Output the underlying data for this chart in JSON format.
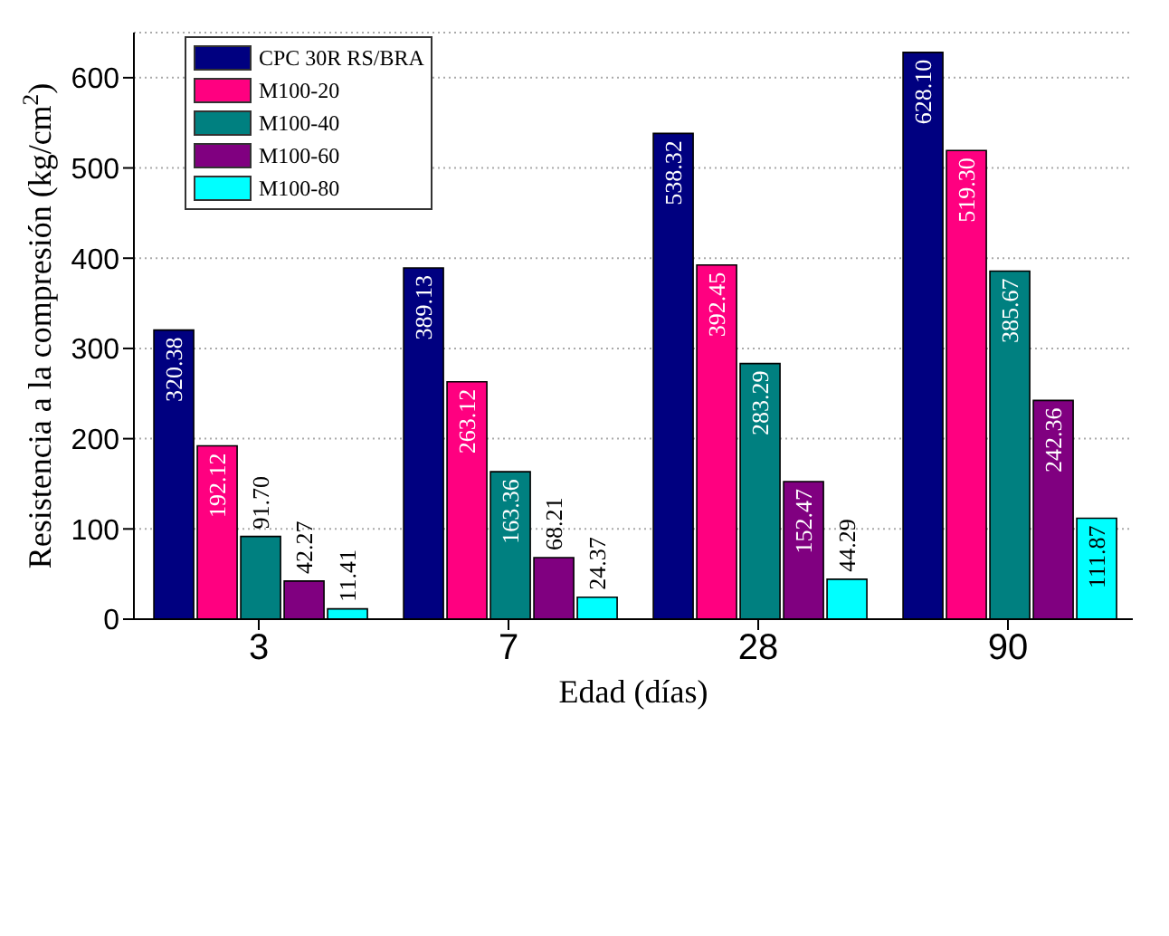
{
  "chart_data": {
    "type": "bar",
    "xlabel": "Edad (días)",
    "ylabel": "Resistencia a la compresión (kg/cm$^{2}$)",
    "categories": [
      "3",
      "7",
      "28",
      "90"
    ],
    "series": [
      {
        "name": "CPC 30R RS/BRA",
        "color": "#000080",
        "values": [
          320.38,
          389.13,
          538.32,
          628.1
        ],
        "value_labels": [
          "320.38",
          "389.13",
          "538.32",
          "628.10"
        ]
      },
      {
        "name": "M100-20",
        "color": "#ff0080",
        "values": [
          192.12,
          263.12,
          392.45,
          519.3
        ],
        "value_labels": [
          "192.12",
          "263.12",
          "392.45",
          "519.30"
        ]
      },
      {
        "name": "M100-40",
        "color": "#008080",
        "values": [
          91.7,
          163.36,
          283.29,
          385.67
        ],
        "value_labels": [
          "91.70",
          "163.36",
          "283.29",
          "385.67"
        ]
      },
      {
        "name": "M100-60",
        "color": "#800080",
        "values": [
          42.27,
          68.21,
          152.47,
          242.36
        ],
        "value_labels": [
          "42.27",
          "68.21",
          "152.47",
          "242.36"
        ]
      },
      {
        "name": "M100-80",
        "color": "#00ffff",
        "values": [
          11.41,
          24.37,
          44.29,
          111.87
        ],
        "value_labels": [
          "11.41",
          "24.37",
          "44.29",
          "111.87"
        ]
      }
    ],
    "ylim": [
      0,
      650
    ],
    "yticks": [
      0,
      100,
      200,
      300,
      400,
      500,
      600
    ],
    "grid": "y",
    "legend": "top left"
  }
}
